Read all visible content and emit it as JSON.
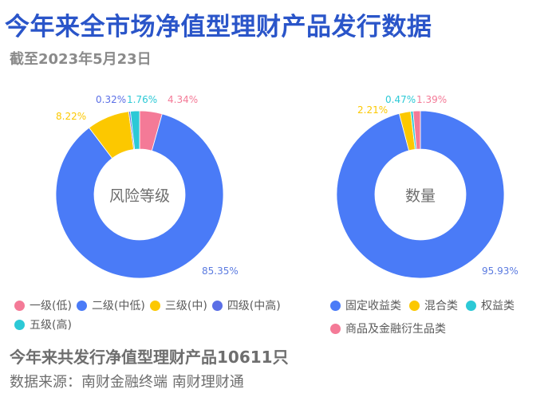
{
  "header": {
    "title": "今年来全市场净值型理财产品发行数据",
    "subtitle": "截至2023年5月23日"
  },
  "footer": {
    "summary": "今年来共发行净值型理财产品10611只",
    "source": "数据来源：南财金融终端 南财理财通"
  },
  "colors": {
    "title": "#2a55c9",
    "pink": "#f47a97",
    "blue": "#4a7bf7",
    "yellow": "#fcc800",
    "indigo": "#5b6fe6",
    "cyan": "#2cc9d6"
  },
  "chart_data": [
    {
      "type": "pie",
      "subtype": "donut",
      "title": "风险等级",
      "categories": [
        "一级(低)",
        "二级(中低)",
        "三级(中)",
        "四级(中高)",
        "五级(高)"
      ],
      "values": [
        4.34,
        85.35,
        8.22,
        0.32,
        1.76
      ],
      "value_labels": [
        "4.34%",
        "85.35%",
        "8.22%",
        "0.32%",
        "1.76%"
      ],
      "colors": [
        "#f47a97",
        "#4a7bf7",
        "#fcc800",
        "#5b6fe6",
        "#2cc9d6"
      ],
      "unit": "%",
      "legend_position": "bottom"
    },
    {
      "type": "pie",
      "subtype": "donut",
      "title": "数量",
      "categories": [
        "固定收益类",
        "混合类",
        "权益类",
        "商品及金融衍生品类"
      ],
      "values": [
        95.93,
        2.21,
        0.47,
        1.39
      ],
      "value_labels": [
        "95.93%",
        "2.21%",
        "0.47%",
        "1.39%"
      ],
      "colors": [
        "#4a7bf7",
        "#fcc800",
        "#2cc9d6",
        "#f47a97"
      ],
      "unit": "%",
      "legend_position": "bottom"
    }
  ],
  "legends": {
    "left": [
      {
        "label": "一级(低)",
        "color": "#f47a97"
      },
      {
        "label": "二级(中低)",
        "color": "#4a7bf7"
      },
      {
        "label": "三级(中)",
        "color": "#fcc800"
      },
      {
        "label": "四级(中高)",
        "color": "#5b6fe6"
      },
      {
        "label": "五级(高)",
        "color": "#2cc9d6"
      }
    ],
    "right": [
      {
        "label": "固定收益类",
        "color": "#4a7bf7"
      },
      {
        "label": "混合类",
        "color": "#fcc800"
      },
      {
        "label": "权益类",
        "color": "#2cc9d6"
      },
      {
        "label": "商品及金融衍生品类",
        "color": "#f47a97"
      }
    ]
  }
}
